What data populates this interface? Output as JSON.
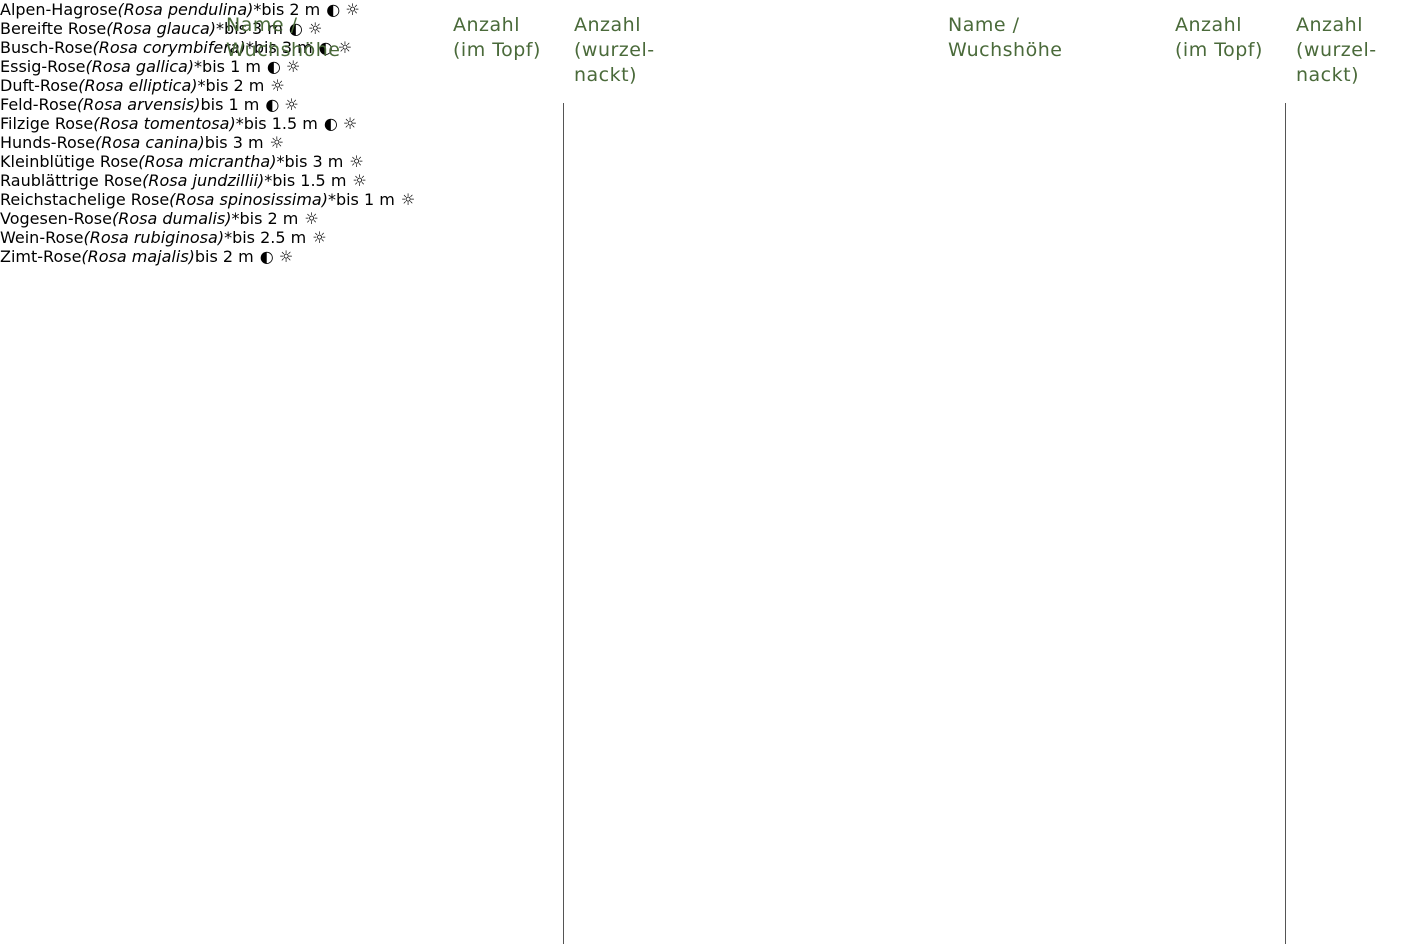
{
  "columns": [
    {
      "header": {
        "name": "Name /\nWuchshöhe",
        "topf": "Anzahl\n(im Topf)",
        "wurzel": "Anzahl\n(wurzel-\nnackt)"
      },
      "rows": [
        {
          "name": "Alpen-Hagrose",
          "latin": "(Rosa pendulina)",
          "mark": "*",
          "height": "bis 2 m",
          "icons": "◐ ☼"
        },
        {
          "name": "Bereifte Rose",
          "latin": "(Rosa glauca)",
          "mark": "*",
          "height": "bis 3 m",
          "icons": "◐ ☼"
        },
        {
          "name": "Busch-Rose",
          "latin": "(Rosa corymbifera)",
          "mark": "*",
          "height": "bis 3 m",
          "icons": "◐ ☼"
        },
        {
          "name": "Essig-Rose",
          "latin": "(Rosa gallica)",
          "mark": "*",
          "height": "bis 1 m",
          "icons": "◐ ☼"
        },
        {
          "name": "Duft-Rose",
          "latin": "(Rosa elliptica)",
          "mark": "*",
          "height": "bis 2 m",
          "icons": "☼"
        },
        {
          "name": "Feld-Rose",
          "latin": "(Rosa arvensis)",
          "height": "bis 1 m",
          "icons": "◐ ☼"
        },
        {
          "name": "Filzige Rose",
          "latin": "(Rosa tomentosa)",
          "mark": "*",
          "height": "bis 1.5 m",
          "icons": "◐ ☼"
        }
      ]
    },
    {
      "header": {
        "name": "Name /\nWuchshöhe",
        "topf": "Anzahl\n(im Topf)",
        "wurzel": "Anzahl\n(wurzel-\nnackt)"
      },
      "rows": [
        {
          "name": "Hunds-Rose",
          "latin": "(Rosa canina)",
          "height": "bis 3 m",
          "icons": "☼"
        },
        {
          "name": "Kleinblütige Rose",
          "latin": "(Rosa micrantha)",
          "mark": "*",
          "height": "bis 3 m",
          "icons": "☼"
        },
        {
          "name": "Raublättrige Rose",
          "latin": "(Rosa jundzillii)",
          "mark": "*",
          "height": "bis 1.5 m",
          "icons": "☼"
        },
        {
          "name": "Reichstachelige Rose",
          "latin": "(Rosa spinosissima)",
          "mark": "*",
          "height": "bis 1 m",
          "icons": "☼"
        },
        {
          "name": "Vogesen-Rose",
          "latin": "(Rosa dumalis)",
          "mark": "*",
          "height": "bis 2 m",
          "icons": "☼"
        },
        {
          "name": "Wein-Rose",
          "latin": "(Rosa rubiginosa)",
          "mark": "*",
          "height": "bis 2.5 m",
          "icons": "☼"
        },
        {
          "name": "Zimt-Rose",
          "latin": "(Rosa majalis)",
          "height": "bis 2 m",
          "icons": "◐ ☼"
        }
      ]
    }
  ]
}
